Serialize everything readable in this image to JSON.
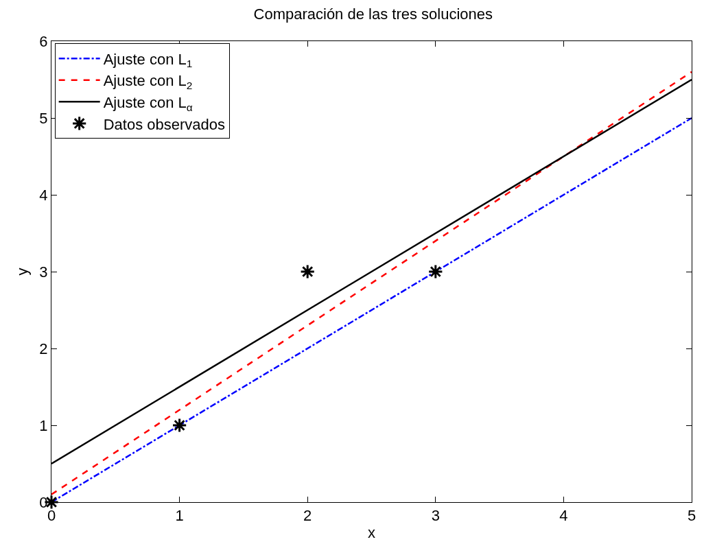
{
  "chart_data": {
    "type": "line",
    "title": "Comparación de las tres soluciones",
    "xlabel": "x",
    "ylabel": "y",
    "xlim": [
      0,
      5
    ],
    "ylim": [
      0,
      6
    ],
    "xticks": [
      0,
      1,
      2,
      3,
      4,
      5
    ],
    "yticks": [
      0,
      1,
      2,
      3,
      4,
      5,
      6
    ],
    "legend": "top left",
    "series": [
      {
        "name": "Ajuste con L$_{1}$",
        "color": "#0000ff",
        "x": [
          0,
          5
        ],
        "values": [
          0,
          5
        ],
        "line_style": "dashdot",
        "marker": "none"
      },
      {
        "name": "Ajuste con L$_{2}$",
        "color": "#ff0000",
        "x": [
          0,
          5
        ],
        "values": [
          0.1,
          5.6
        ],
        "line_style": "dashed",
        "marker": "none"
      },
      {
        "name": "Ajuste con L$_{α}$",
        "color": "#000000",
        "x": [
          0,
          5
        ],
        "values": [
          0.5,
          5.5
        ],
        "line_style": "solid",
        "marker": "none"
      },
      {
        "name": "Datos observados",
        "type": "scatter",
        "color": "#000000",
        "x": [
          0,
          1,
          2,
          3
        ],
        "values": [
          0,
          1,
          3,
          3
        ],
        "marker": "cross"
      }
    ]
  }
}
